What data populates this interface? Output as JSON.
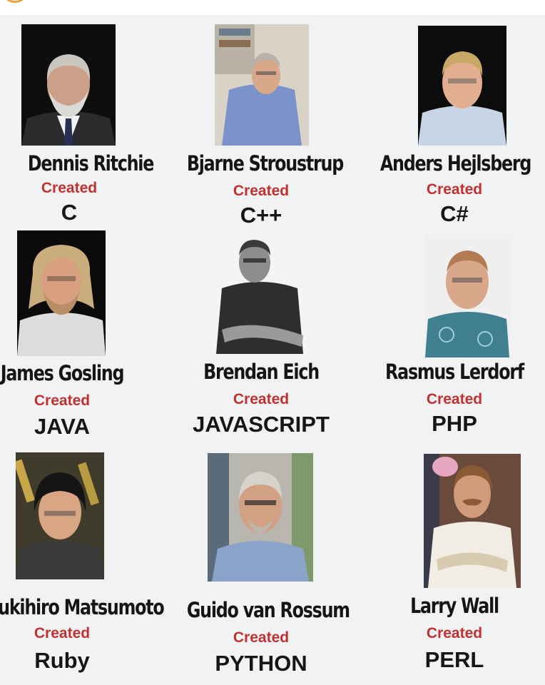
{
  "created_label": "Created",
  "people": [
    {
      "name": "Dennis Ritchie",
      "language": "C"
    },
    {
      "name": "Bjarne Stroustrup",
      "language": "C++"
    },
    {
      "name": "Anders Hejlsberg",
      "language": "C#"
    },
    {
      "name": "James Gosling",
      "language": "JAVA"
    },
    {
      "name": "Brendan Eich",
      "language": "JAVASCRIPT"
    },
    {
      "name": "Rasmus Lerdorf",
      "language": "PHP"
    },
    {
      "name": "Yukihiro Matsumoto",
      "language": "Ruby"
    },
    {
      "name": "Guido van Rossum",
      "language": "PYTHON"
    },
    {
      "name": "Larry Wall",
      "language": "PERL"
    }
  ],
  "colors": {
    "background": "#f1f2f4",
    "created_text": "#c0312f",
    "name_text": "#151515"
  }
}
